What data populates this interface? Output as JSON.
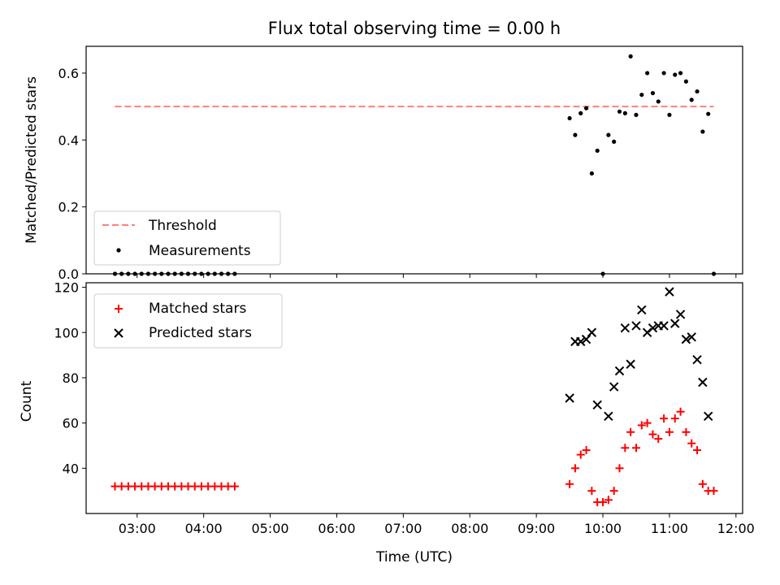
{
  "figure": {
    "title": "Flux total observing time = 0.00 h",
    "xlabel": "Time (UTC)"
  },
  "chart_data": [
    {
      "type": "scatter",
      "panel": "top",
      "ylabel": "Matched/Predicted stars",
      "xlim": [
        "02:14",
        "12:06"
      ],
      "ylim": [
        0,
        0.68
      ],
      "xticks": [
        "03:00",
        "04:00",
        "05:00",
        "06:00",
        "07:00",
        "08:00",
        "09:00",
        "10:00",
        "11:00",
        "12:00"
      ],
      "yticks": [
        0.0,
        0.2,
        0.4,
        0.6
      ],
      "ytick_labels": [
        "0.0",
        "0.2",
        "0.4",
        "0.6"
      ],
      "legend_position": "lower left",
      "series": [
        {
          "name": "Threshold",
          "kind": "line",
          "style": "dashed",
          "color": "#ff7f7f",
          "points": [
            {
              "x": "02:40",
              "y": 0.5
            },
            {
              "x": "11:40",
              "y": 0.5
            }
          ]
        },
        {
          "name": "Measurements",
          "kind": "points",
          "color": "#000000",
          "points": [
            {
              "x": "02:40",
              "y": 0
            },
            {
              "x": "02:46",
              "y": 0
            },
            {
              "x": "02:52",
              "y": 0
            },
            {
              "x": "02:58",
              "y": 0
            },
            {
              "x": "03:04",
              "y": 0
            },
            {
              "x": "03:10",
              "y": 0
            },
            {
              "x": "03:16",
              "y": 0
            },
            {
              "x": "03:22",
              "y": 0
            },
            {
              "x": "03:28",
              "y": 0
            },
            {
              "x": "03:34",
              "y": 0
            },
            {
              "x": "03:40",
              "y": 0
            },
            {
              "x": "03:46",
              "y": 0
            },
            {
              "x": "03:52",
              "y": 0
            },
            {
              "x": "03:58",
              "y": 0
            },
            {
              "x": "04:04",
              "y": 0
            },
            {
              "x": "04:10",
              "y": 0
            },
            {
              "x": "04:16",
              "y": 0
            },
            {
              "x": "04:22",
              "y": 0
            },
            {
              "x": "04:28",
              "y": 0
            },
            {
              "x": "09:30",
              "y": 0.465
            },
            {
              "x": "09:35",
              "y": 0.415
            },
            {
              "x": "09:40",
              "y": 0.48
            },
            {
              "x": "09:45",
              "y": 0.495
            },
            {
              "x": "09:50",
              "y": 0.3
            },
            {
              "x": "09:55",
              "y": 0.368
            },
            {
              "x": "10:00",
              "y": 0
            },
            {
              "x": "10:05",
              "y": 0.415
            },
            {
              "x": "10:10",
              "y": 0.395
            },
            {
              "x": "10:15",
              "y": 0.485
            },
            {
              "x": "10:20",
              "y": 0.48
            },
            {
              "x": "10:25",
              "y": 0.65
            },
            {
              "x": "10:30",
              "y": 0.475
            },
            {
              "x": "10:35",
              "y": 0.535
            },
            {
              "x": "10:40",
              "y": 0.6
            },
            {
              "x": "10:45",
              "y": 0.54
            },
            {
              "x": "10:50",
              "y": 0.515
            },
            {
              "x": "10:55",
              "y": 0.6
            },
            {
              "x": "11:00",
              "y": 0.475
            },
            {
              "x": "11:05",
              "y": 0.595
            },
            {
              "x": "11:10",
              "y": 0.6
            },
            {
              "x": "11:15",
              "y": 0.575
            },
            {
              "x": "11:20",
              "y": 0.52
            },
            {
              "x": "11:25",
              "y": 0.545
            },
            {
              "x": "11:30",
              "y": 0.425
            },
            {
              "x": "11:35",
              "y": 0.478
            },
            {
              "x": "11:40",
              "y": 0
            }
          ]
        }
      ]
    },
    {
      "type": "scatter",
      "panel": "bottom",
      "ylabel": "Count",
      "xlim": [
        "02:14",
        "12:06"
      ],
      "ylim": [
        20,
        122
      ],
      "xticks": [
        "03:00",
        "04:00",
        "05:00",
        "06:00",
        "07:00",
        "08:00",
        "09:00",
        "10:00",
        "11:00",
        "12:00"
      ],
      "yticks": [
        40,
        60,
        80,
        100,
        120
      ],
      "ytick_labels": [
        "40",
        "60",
        "80",
        "100",
        "120"
      ],
      "legend_position": "upper left",
      "series": [
        {
          "name": "Matched stars",
          "marker": "plus",
          "color": "#ff0000",
          "points": [
            {
              "x": "02:40",
              "y": 32
            },
            {
              "x": "02:46",
              "y": 32
            },
            {
              "x": "02:52",
              "y": 32
            },
            {
              "x": "02:58",
              "y": 32
            },
            {
              "x": "03:04",
              "y": 32
            },
            {
              "x": "03:10",
              "y": 32
            },
            {
              "x": "03:16",
              "y": 32
            },
            {
              "x": "03:22",
              "y": 32
            },
            {
              "x": "03:28",
              "y": 32
            },
            {
              "x": "03:34",
              "y": 32
            },
            {
              "x": "03:40",
              "y": 32
            },
            {
              "x": "03:46",
              "y": 32
            },
            {
              "x": "03:52",
              "y": 32
            },
            {
              "x": "03:58",
              "y": 32
            },
            {
              "x": "04:04",
              "y": 32
            },
            {
              "x": "04:10",
              "y": 32
            },
            {
              "x": "04:16",
              "y": 32
            },
            {
              "x": "04:22",
              "y": 32
            },
            {
              "x": "04:28",
              "y": 32
            },
            {
              "x": "09:30",
              "y": 33
            },
            {
              "x": "09:35",
              "y": 40
            },
            {
              "x": "09:40",
              "y": 46
            },
            {
              "x": "09:45",
              "y": 48
            },
            {
              "x": "09:50",
              "y": 30
            },
            {
              "x": "09:55",
              "y": 25
            },
            {
              "x": "10:00",
              "y": 25
            },
            {
              "x": "10:05",
              "y": 26
            },
            {
              "x": "10:10",
              "y": 30
            },
            {
              "x": "10:15",
              "y": 40
            },
            {
              "x": "10:20",
              "y": 49
            },
            {
              "x": "10:25",
              "y": 56
            },
            {
              "x": "10:30",
              "y": 49
            },
            {
              "x": "10:35",
              "y": 59
            },
            {
              "x": "10:40",
              "y": 60
            },
            {
              "x": "10:45",
              "y": 55
            },
            {
              "x": "10:50",
              "y": 53
            },
            {
              "x": "10:55",
              "y": 62
            },
            {
              "x": "11:00",
              "y": 56
            },
            {
              "x": "11:05",
              "y": 62
            },
            {
              "x": "11:10",
              "y": 65
            },
            {
              "x": "11:15",
              "y": 56
            },
            {
              "x": "11:20",
              "y": 51
            },
            {
              "x": "11:25",
              "y": 48
            },
            {
              "x": "11:30",
              "y": 33
            },
            {
              "x": "11:35",
              "y": 30
            },
            {
              "x": "11:40",
              "y": 30
            }
          ]
        },
        {
          "name": "Predicted stars",
          "marker": "x",
          "color": "#000000",
          "points": [
            {
              "x": "09:30",
              "y": 71
            },
            {
              "x": "09:35",
              "y": 96
            },
            {
              "x": "09:40",
              "y": 96
            },
            {
              "x": "09:45",
              "y": 97
            },
            {
              "x": "09:50",
              "y": 100
            },
            {
              "x": "09:55",
              "y": 68
            },
            {
              "x": "10:05",
              "y": 63
            },
            {
              "x": "10:10",
              "y": 76
            },
            {
              "x": "10:15",
              "y": 83
            },
            {
              "x": "10:20",
              "y": 102
            },
            {
              "x": "10:25",
              "y": 86
            },
            {
              "x": "10:30",
              "y": 103
            },
            {
              "x": "10:35",
              "y": 110
            },
            {
              "x": "10:40",
              "y": 100
            },
            {
              "x": "10:45",
              "y": 102
            },
            {
              "x": "10:50",
              "y": 103
            },
            {
              "x": "10:55",
              "y": 103
            },
            {
              "x": "11:00",
              "y": 118
            },
            {
              "x": "11:05",
              "y": 104
            },
            {
              "x": "11:10",
              "y": 108
            },
            {
              "x": "11:15",
              "y": 97
            },
            {
              "x": "11:20",
              "y": 98
            },
            {
              "x": "11:25",
              "y": 88
            },
            {
              "x": "11:30",
              "y": 78
            },
            {
              "x": "11:35",
              "y": 63
            }
          ]
        }
      ]
    }
  ]
}
